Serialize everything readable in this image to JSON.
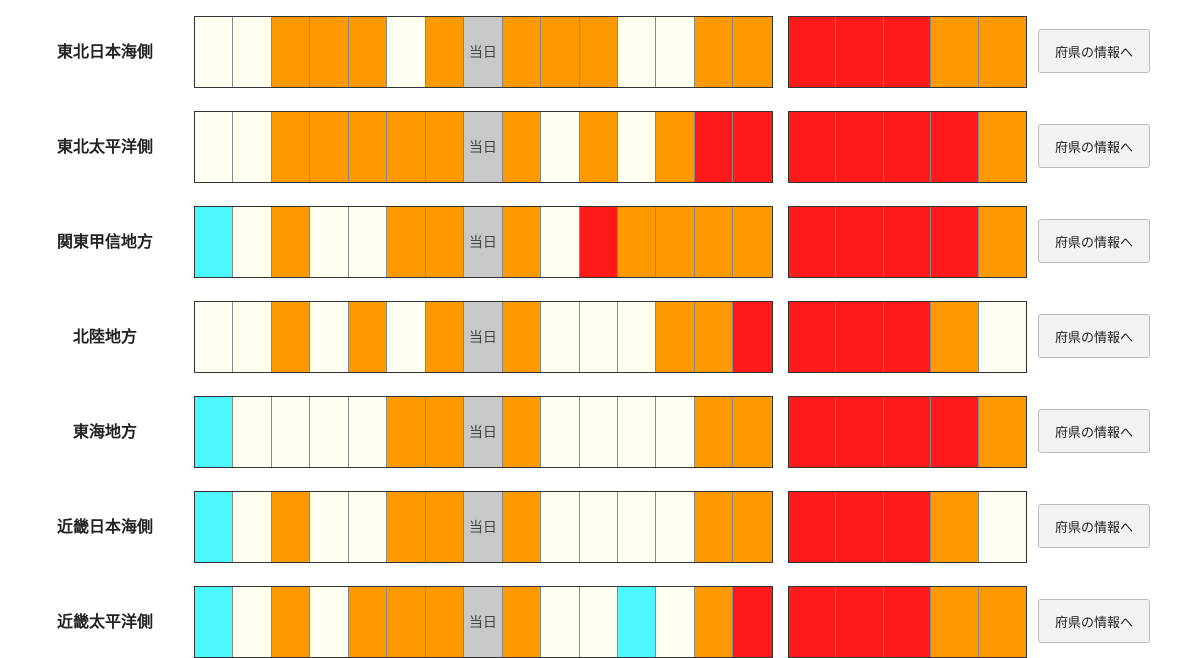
{
  "rows": [
    {
      "name": "東北日本海側",
      "button": "府県の情報へ",
      "week": [
        {
          "color": "#fffff0"
        },
        {
          "color": "#fffff0"
        },
        {
          "color": "#ff9900"
        },
        {
          "color": "#ff9900"
        },
        {
          "color": "#ff9900"
        },
        {
          "color": "#fffff0"
        },
        {
          "color": "#ff9900"
        },
        {
          "color": "#c8c8c8",
          "label": "当日"
        },
        {
          "color": "#ff9900"
        },
        {
          "color": "#ff9900"
        },
        {
          "color": "#ff9900"
        },
        {
          "color": "#fffff0"
        },
        {
          "color": "#fffff0"
        },
        {
          "color": "#ff9900"
        },
        {
          "color": "#ff9900"
        }
      ],
      "later": [
        "#ff1a1a",
        "#ff1a1a",
        "#ff1a1a",
        "#ff9900",
        "#ff9900"
      ]
    },
    {
      "name": "東北太平洋側",
      "button": "府県の情報へ",
      "week": [
        {
          "color": "#fffff0"
        },
        {
          "color": "#fffff0"
        },
        {
          "color": "#ff9900"
        },
        {
          "color": "#ff9900"
        },
        {
          "color": "#ff9900"
        },
        {
          "color": "#ff9900"
        },
        {
          "color": "#ff9900"
        },
        {
          "color": "#c8c8c8",
          "label": "当日"
        },
        {
          "color": "#ff9900"
        },
        {
          "color": "#fffff0"
        },
        {
          "color": "#ff9900"
        },
        {
          "color": "#fffff0"
        },
        {
          "color": "#ff9900"
        },
        {
          "color": "#ff1a1a"
        },
        {
          "color": "#ff1a1a"
        }
      ],
      "later": [
        "#ff1a1a",
        "#ff1a1a",
        "#ff1a1a",
        "#ff1a1a",
        "#ff9900"
      ]
    },
    {
      "name": "関東甲信地方",
      "button": "府県の情報へ",
      "week": [
        {
          "color": "#4df7ff"
        },
        {
          "color": "#fffff0"
        },
        {
          "color": "#ff9900"
        },
        {
          "color": "#fffff0"
        },
        {
          "color": "#fffff0"
        },
        {
          "color": "#ff9900"
        },
        {
          "color": "#ff9900"
        },
        {
          "color": "#c8c8c8",
          "label": "当日"
        },
        {
          "color": "#ff9900"
        },
        {
          "color": "#fffff0"
        },
        {
          "color": "#ff1a1a"
        },
        {
          "color": "#ff9900"
        },
        {
          "color": "#ff9900"
        },
        {
          "color": "#ff9900"
        },
        {
          "color": "#ff9900"
        }
      ],
      "later": [
        "#ff1a1a",
        "#ff1a1a",
        "#ff1a1a",
        "#ff1a1a",
        "#ff9900"
      ]
    },
    {
      "name": "北陸地方",
      "button": "府県の情報へ",
      "week": [
        {
          "color": "#fffff0"
        },
        {
          "color": "#fffff0"
        },
        {
          "color": "#ff9900"
        },
        {
          "color": "#fffff0"
        },
        {
          "color": "#ff9900"
        },
        {
          "color": "#fffff0"
        },
        {
          "color": "#ff9900"
        },
        {
          "color": "#c8c8c8",
          "label": "当日"
        },
        {
          "color": "#ff9900"
        },
        {
          "color": "#fffff0"
        },
        {
          "color": "#fffff0"
        },
        {
          "color": "#fffff0"
        },
        {
          "color": "#ff9900"
        },
        {
          "color": "#ff9900"
        },
        {
          "color": "#ff1a1a"
        }
      ],
      "later": [
        "#ff1a1a",
        "#ff1a1a",
        "#ff1a1a",
        "#ff9900",
        "#fffff0"
      ]
    },
    {
      "name": "東海地方",
      "button": "府県の情報へ",
      "week": [
        {
          "color": "#4df7ff"
        },
        {
          "color": "#fffff0"
        },
        {
          "color": "#fffff0"
        },
        {
          "color": "#fffff0"
        },
        {
          "color": "#fffff0"
        },
        {
          "color": "#ff9900"
        },
        {
          "color": "#ff9900"
        },
        {
          "color": "#c8c8c8",
          "label": "当日"
        },
        {
          "color": "#ff9900"
        },
        {
          "color": "#fffff0"
        },
        {
          "color": "#fffff0"
        },
        {
          "color": "#fffff0"
        },
        {
          "color": "#fffff0"
        },
        {
          "color": "#ff9900"
        },
        {
          "color": "#ff9900"
        }
      ],
      "later": [
        "#ff1a1a",
        "#ff1a1a",
        "#ff1a1a",
        "#ff1a1a",
        "#ff9900"
      ]
    },
    {
      "name": "近畿日本海側",
      "button": "府県の情報へ",
      "week": [
        {
          "color": "#4df7ff"
        },
        {
          "color": "#fffff0"
        },
        {
          "color": "#ff9900"
        },
        {
          "color": "#fffff0"
        },
        {
          "color": "#fffff0"
        },
        {
          "color": "#ff9900"
        },
        {
          "color": "#ff9900"
        },
        {
          "color": "#c8c8c8",
          "label": "当日"
        },
        {
          "color": "#ff9900"
        },
        {
          "color": "#fffff0"
        },
        {
          "color": "#fffff0"
        },
        {
          "color": "#fffff0"
        },
        {
          "color": "#fffff0"
        },
        {
          "color": "#ff9900"
        },
        {
          "color": "#ff9900"
        }
      ],
      "later": [
        "#ff1a1a",
        "#ff1a1a",
        "#ff1a1a",
        "#ff9900",
        "#fffff0"
      ]
    },
    {
      "name": "近畿太平洋側",
      "button": "府県の情報へ",
      "week": [
        {
          "color": "#4df7ff"
        },
        {
          "color": "#fffff0"
        },
        {
          "color": "#ff9900"
        },
        {
          "color": "#fffff0"
        },
        {
          "color": "#ff9900"
        },
        {
          "color": "#ff9900"
        },
        {
          "color": "#ff9900"
        },
        {
          "color": "#c8c8c8",
          "label": "当日"
        },
        {
          "color": "#ff9900"
        },
        {
          "color": "#fffff0"
        },
        {
          "color": "#fffff0"
        },
        {
          "color": "#4df7ff"
        },
        {
          "color": "#fffff0"
        },
        {
          "color": "#ff9900"
        },
        {
          "color": "#ff1a1a"
        }
      ],
      "later": [
        "#ff1a1a",
        "#ff1a1a",
        "#ff1a1a",
        "#ff9900",
        "#ff9900"
      ]
    }
  ]
}
